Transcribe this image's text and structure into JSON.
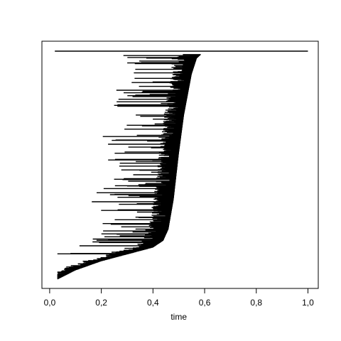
{
  "chart_data": {
    "type": "line",
    "title": "",
    "xlabel": "time",
    "ylabel": "",
    "xlim": [
      -0.03,
      1.04
    ],
    "ylim": [
      0,
      1
    ],
    "grid": false,
    "x_ticks": [
      0.0,
      0.2,
      0.4,
      0.6,
      0.8,
      1.0
    ],
    "x_tick_labels": [
      "0,0",
      "0,2",
      "0,4",
      "0,6",
      "0,8",
      "1,0"
    ],
    "series_description": "Tree / lineage-through-time style plot: many short horizontal branches whose right tips follow an S-shaped curve rising steeply near time 0.5; a single long branch spans the full width at the top.",
    "top_branch": {
      "x_start": 0.02,
      "x_end": 1.0,
      "y": 1.0
    },
    "tip_curve": {
      "x": [
        0.03,
        0.1,
        0.2,
        0.3,
        0.4,
        0.44,
        0.46,
        0.48,
        0.5,
        0.52,
        0.55,
        0.57,
        0.6,
        0.65,
        0.72
      ],
      "y": [
        0.0,
        0.04,
        0.08,
        0.11,
        0.14,
        0.17,
        0.22,
        0.35,
        0.55,
        0.72,
        0.9,
        0.97,
        1.0,
        1.0,
        1.0
      ]
    }
  }
}
